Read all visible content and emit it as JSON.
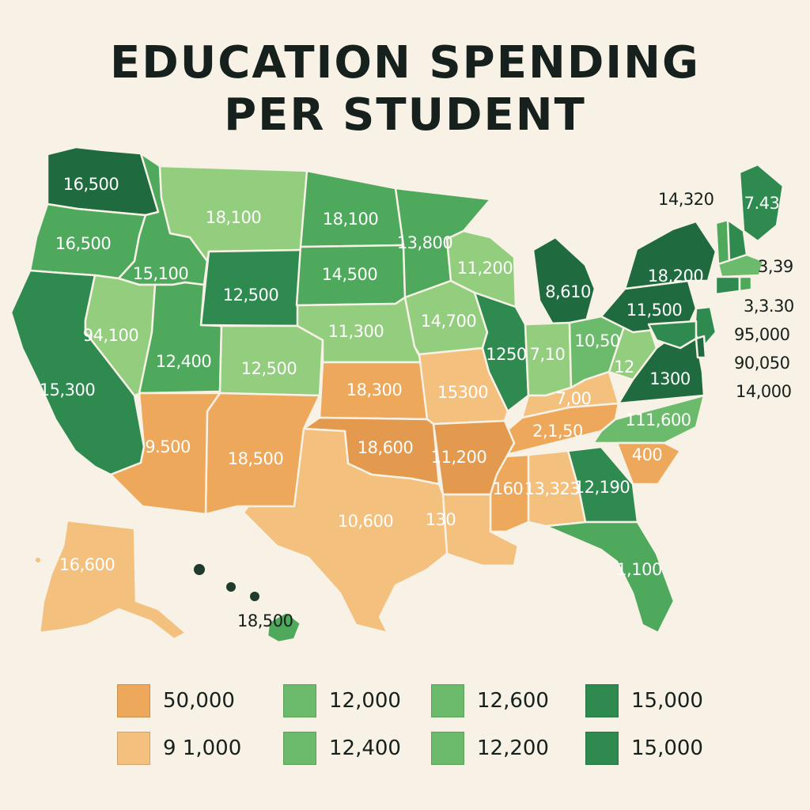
{
  "title_line1": "EDUCATION SPENDING",
  "title_line2": "PER STUDENT",
  "colors": {
    "background": "#f7f1e6",
    "orange_dark": "#e39a4f",
    "orange": "#eda85c",
    "orange_light": "#f4c07e",
    "green_light": "#93cd7e",
    "green_mid": "#6cbb6c",
    "green": "#4ea95d",
    "green_dark": "#2e8a4f",
    "green_darkest": "#1f6b3f"
  },
  "states": [
    {
      "state": "WA",
      "value": "16,500",
      "color": "green_darkest"
    },
    {
      "state": "OR",
      "value": "16,500",
      "color": "green"
    },
    {
      "state": "CA",
      "value": "15,300",
      "color": "green_dark"
    },
    {
      "state": "ID",
      "value": "15,100",
      "color": "green"
    },
    {
      "state": "NV",
      "value": "94,100",
      "color": "green_light"
    },
    {
      "state": "MT",
      "value": "18,100",
      "color": "green_light"
    },
    {
      "state": "WY",
      "value": "12,500",
      "color": "green_dark"
    },
    {
      "state": "UT",
      "value": "12,400",
      "color": "green"
    },
    {
      "state": "CO",
      "value": "12,500",
      "color": "green_light"
    },
    {
      "state": "ND",
      "value": "18,100",
      "color": "green"
    },
    {
      "state": "SD",
      "value": "14,500",
      "color": "green"
    },
    {
      "state": "NE",
      "value": "11,300",
      "color": "green_light"
    },
    {
      "state": "KS",
      "value": "18,300",
      "color": "orange"
    },
    {
      "state": "MN",
      "value": "13,800",
      "color": "green"
    },
    {
      "state": "IA",
      "value": "14,700",
      "color": "green_light"
    },
    {
      "state": "MO",
      "value": "15300",
      "color": "orange_light"
    },
    {
      "state": "WI",
      "value": "11,200",
      "color": "green_light"
    },
    {
      "state": "IL",
      "value": "1250",
      "color": "green_dark"
    },
    {
      "state": "MI",
      "value": "8,610",
      "color": "green_darkest"
    },
    {
      "state": "IN",
      "value": "7,10",
      "color": "green_light"
    },
    {
      "state": "OH",
      "value": "10,50",
      "color": "green_mid"
    },
    {
      "state": "KY",
      "value": "7,00",
      "color": "orange_light"
    },
    {
      "state": "TN",
      "value": "2,1,50",
      "color": "orange"
    },
    {
      "state": "WV",
      "value": "12",
      "color": "green_light"
    },
    {
      "state": "VA",
      "value": "1300",
      "color": "green_darkest"
    },
    {
      "state": "PA",
      "value": "11,500",
      "color": "green_darkest"
    },
    {
      "state": "NY",
      "value": "18,200",
      "color": "green_darkest"
    },
    {
      "state": "NC",
      "value": "111,600",
      "color": "green_mid"
    },
    {
      "state": "SC",
      "value": "400",
      "color": "orange"
    },
    {
      "state": "GA",
      "value": "12,190",
      "color": "green_dark"
    },
    {
      "state": "FL",
      "value": "1,100",
      "color": "green"
    },
    {
      "state": "AL",
      "value": "13,323",
      "color": "orange_light"
    },
    {
      "state": "MS",
      "value": "160",
      "color": "orange"
    },
    {
      "state": "LA",
      "value": "130",
      "color": "orange_light"
    },
    {
      "state": "AR",
      "value": "11,200",
      "color": "orange_dark"
    },
    {
      "state": "OK",
      "value": "18,600",
      "color": "orange_dark"
    },
    {
      "state": "TX",
      "value": "10,600",
      "color": "orange_light"
    },
    {
      "state": "NM",
      "value": "18,500",
      "color": "orange"
    },
    {
      "state": "AZ",
      "value": "9.500",
      "color": "orange"
    },
    {
      "state": "AK",
      "value": "16,600",
      "color": "orange_light"
    },
    {
      "state": "HI",
      "value": "18,500",
      "color": "green"
    },
    {
      "state": "ME",
      "value": "7.43",
      "color": "green_dark"
    }
  ],
  "callouts": [
    "14,320",
    "3,39",
    "3,3.30",
    "95,000",
    "90,050",
    "14,000"
  ],
  "legend": [
    {
      "label": "50,000",
      "color": "orange"
    },
    {
      "label": "12,000",
      "color": "green_mid"
    },
    {
      "label": "12,600",
      "color": "green_mid"
    },
    {
      "label": "15,000",
      "color": "green_dark"
    },
    {
      "label": "9 1,000",
      "color": "orange_light"
    },
    {
      "label": "12,400",
      "color": "green_mid"
    },
    {
      "label": "12,200",
      "color": "green_mid"
    },
    {
      "label": "15,000",
      "color": "green_dark"
    }
  ]
}
